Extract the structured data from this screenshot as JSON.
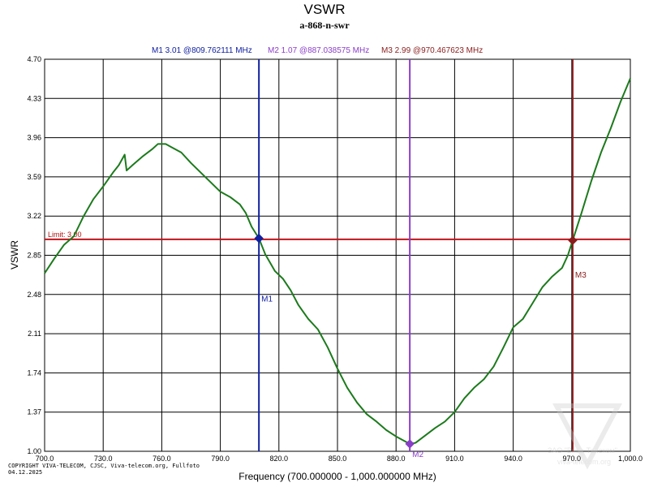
{
  "chart_data": {
    "type": "line",
    "title": "VSWR",
    "subtitle": "a-868-n-swr",
    "xlabel": "Frequency (700.000000 - 1,000.000000 MHz)",
    "ylabel": "VSWR",
    "xlim": [
      700,
      1000
    ],
    "ylim": [
      1.0,
      4.7
    ],
    "x_ticks": [
      700,
      730,
      760,
      790,
      820,
      850,
      880,
      910,
      940,
      970,
      1000
    ],
    "x_tick_labels": [
      "700.0",
      "730.0",
      "760.0",
      "790.0",
      "820.0",
      "850.0",
      "880.0",
      "910.0",
      "940.0",
      "970.0",
      "1,000.0"
    ],
    "y_ticks": [
      1.0,
      1.37,
      1.74,
      2.11,
      2.48,
      2.85,
      3.22,
      3.59,
      3.96,
      4.33,
      4.7
    ],
    "y_tick_labels": [
      "1.00",
      "1.37",
      "1.74",
      "2.11",
      "2.48",
      "2.85",
      "3.22",
      "3.59",
      "3.96",
      "4.33",
      "4.70"
    ],
    "grid": true,
    "limit": {
      "value": 3.0,
      "label": "Limit: 3.00",
      "color": "#c0141c"
    },
    "series": [
      {
        "color": "#1c7a1c",
        "points": [
          [
            700,
            2.68
          ],
          [
            705,
            2.82
          ],
          [
            710,
            2.95
          ],
          [
            715,
            3.03
          ],
          [
            720,
            3.22
          ],
          [
            725,
            3.38
          ],
          [
            730,
            3.5
          ],
          [
            735,
            3.63
          ],
          [
            738,
            3.7
          ],
          [
            741,
            3.8
          ],
          [
            742,
            3.65
          ],
          [
            745,
            3.7
          ],
          [
            750,
            3.78
          ],
          [
            755,
            3.85
          ],
          [
            758,
            3.9
          ],
          [
            762,
            3.9
          ],
          [
            765,
            3.87
          ],
          [
            770,
            3.82
          ],
          [
            775,
            3.72
          ],
          [
            780,
            3.63
          ],
          [
            785,
            3.54
          ],
          [
            790,
            3.45
          ],
          [
            795,
            3.4
          ],
          [
            800,
            3.33
          ],
          [
            803,
            3.25
          ],
          [
            806,
            3.12
          ],
          [
            809.76,
            3.01
          ],
          [
            813,
            2.86
          ],
          [
            818,
            2.7
          ],
          [
            822,
            2.63
          ],
          [
            826,
            2.52
          ],
          [
            830,
            2.38
          ],
          [
            835,
            2.25
          ],
          [
            840,
            2.15
          ],
          [
            845,
            1.98
          ],
          [
            850,
            1.78
          ],
          [
            855,
            1.6
          ],
          [
            860,
            1.46
          ],
          [
            865,
            1.35
          ],
          [
            870,
            1.28
          ],
          [
            875,
            1.2
          ],
          [
            880,
            1.14
          ],
          [
            885,
            1.09
          ],
          [
            887.04,
            1.07
          ],
          [
            890,
            1.08
          ],
          [
            895,
            1.15
          ],
          [
            900,
            1.22
          ],
          [
            905,
            1.28
          ],
          [
            910,
            1.37
          ],
          [
            915,
            1.5
          ],
          [
            920,
            1.6
          ],
          [
            925,
            1.68
          ],
          [
            930,
            1.8
          ],
          [
            935,
            1.98
          ],
          [
            940,
            2.17
          ],
          [
            945,
            2.25
          ],
          [
            950,
            2.4
          ],
          [
            955,
            2.55
          ],
          [
            960,
            2.65
          ],
          [
            965,
            2.73
          ],
          [
            968,
            2.85
          ],
          [
            970.47,
            2.99
          ],
          [
            975,
            3.25
          ],
          [
            980,
            3.55
          ],
          [
            985,
            3.82
          ],
          [
            990,
            4.05
          ],
          [
            995,
            4.3
          ],
          [
            1000,
            4.52
          ]
        ]
      }
    ],
    "markers": [
      {
        "label": "M1",
        "x": 809.762111,
        "y": 3.01,
        "color": "#1020a0",
        "readout": "M1   3.01 @809.762111 MHz"
      },
      {
        "label": "M2",
        "x": 887.038575,
        "y": 1.07,
        "color": "#8a3ec8",
        "readout": "M2   1.07 @887.038575 MHz"
      },
      {
        "label": "M3",
        "x": 970.467623,
        "y": 2.99,
        "color": "#8a1c1c",
        "readout": "M3   2.99 @970.467623 MHz"
      }
    ]
  },
  "footer": {
    "copyright_line1": "COPYRIGHT VIVA-TELECOM, CJSC, Viva-telecom.org, Fullfoto",
    "copyright_line2": "04.12.2025",
    "watermark_line1": "ЗАО \"Вива-Телеком\"",
    "watermark_line2": "viva-telecom.org"
  }
}
